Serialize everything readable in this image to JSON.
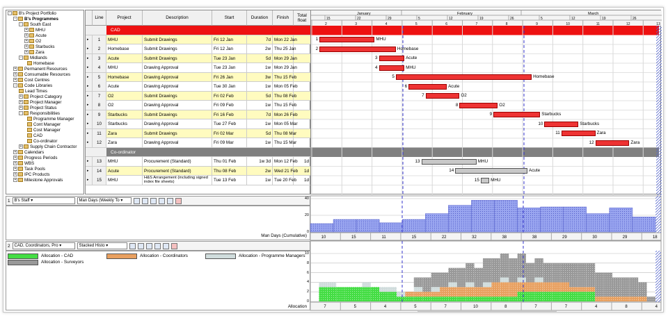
{
  "tree": [
    {
      "label": "B's Project Portfolio",
      "x": 2,
      "y": 1,
      "ex": "-"
    },
    {
      "label": "B's Programmes",
      "x": 10,
      "y": 9,
      "ex": "-",
      "bold": true
    },
    {
      "label": "South East",
      "x": 18,
      "y": 17,
      "ex": "-"
    },
    {
      "label": "MHU",
      "x": 26,
      "y": 25,
      "ex": "+"
    },
    {
      "label": "Acute",
      "x": 26,
      "y": 33,
      "ex": "+"
    },
    {
      "label": "O2",
      "x": 26,
      "y": 41,
      "ex": "+"
    },
    {
      "label": "Starbucks",
      "x": 26,
      "y": 49,
      "ex": "+"
    },
    {
      "label": "Zara",
      "x": 26,
      "y": 57,
      "ex": "+"
    },
    {
      "label": "Midlands",
      "x": 18,
      "y": 65,
      "ex": "-"
    },
    {
      "label": "Homebase",
      "x": 30,
      "y": 73,
      "ex": ""
    },
    {
      "label": "Permanent Resources",
      "x": 10,
      "y": 81,
      "ex": "+"
    },
    {
      "label": "Consumable Resources",
      "x": 10,
      "y": 89,
      "ex": "+"
    },
    {
      "label": "Cost Centres",
      "x": 10,
      "y": 97,
      "ex": "+"
    },
    {
      "label": "Code Libraries",
      "x": 10,
      "y": 105,
      "ex": "-"
    },
    {
      "label": "Lead Times",
      "x": 18,
      "y": 113,
      "ex": ""
    },
    {
      "label": "Project Category",
      "x": 18,
      "y": 121,
      "ex": "+"
    },
    {
      "label": "Project Manager",
      "x": 18,
      "y": 129,
      "ex": "+"
    },
    {
      "label": "Project Status",
      "x": 18,
      "y": 137,
      "ex": "+"
    },
    {
      "label": "Responsibilities",
      "x": 18,
      "y": 145,
      "ex": "-"
    },
    {
      "label": "Programme Manager",
      "x": 30,
      "y": 153,
      "ex": ""
    },
    {
      "label": "Cont Manager",
      "x": 30,
      "y": 161,
      "ex": ""
    },
    {
      "label": "Cost Manager",
      "x": 30,
      "y": 169,
      "ex": ""
    },
    {
      "label": "CAD",
      "x": 30,
      "y": 177,
      "ex": ""
    },
    {
      "label": "Co-ordinator",
      "x": 30,
      "y": 185,
      "ex": ""
    },
    {
      "label": "Supply Chain Contractor",
      "x": 18,
      "y": 193,
      "ex": "+"
    },
    {
      "label": "Calendars",
      "x": 10,
      "y": 201,
      "ex": "+"
    },
    {
      "label": "Progress Periods",
      "x": 10,
      "y": 209,
      "ex": "+"
    },
    {
      "label": "WBS",
      "x": 10,
      "y": 217,
      "ex": "+"
    },
    {
      "label": "Task Pools",
      "x": 10,
      "y": 225,
      "ex": "+"
    },
    {
      "label": "IPC Products",
      "x": 10,
      "y": 233,
      "ex": "+"
    },
    {
      "label": "Milestone Approvals",
      "x": 10,
      "y": 241,
      "ex": "+"
    }
  ],
  "grid_headers": [
    "Line",
    "Project",
    "Description",
    "Start",
    "Duration",
    "Finish",
    "Total float"
  ],
  "groups": {
    "cad": "CAD",
    "coord": "Co-ordinator"
  },
  "rows": [
    {
      "line": "1",
      "project": "MHU",
      "desc": "Submit Drawings",
      "start": "Fri 12 Jan",
      "dur": "7d",
      "finish": "Mon 22 Jan",
      "float": "",
      "y": true
    },
    {
      "line": "2",
      "project": "Homebase",
      "desc": "Submit Drawings",
      "start": "Fri 12 Jan",
      "dur": "2w",
      "finish": "Thu 25 Jan",
      "float": "",
      "y": false
    },
    {
      "line": "3",
      "project": "Acute",
      "desc": "Submit Drawings",
      "start": "Tue 23 Jan",
      "dur": "5d",
      "finish": "Mon 29 Jan",
      "float": "",
      "y": true
    },
    {
      "line": "4",
      "project": "MHU",
      "desc": "Drawing Approval",
      "start": "Tue 23 Jan",
      "dur": "1w",
      "finish": "Mon 29 Jan",
      "float": "",
      "y": false
    },
    {
      "line": "5",
      "project": "Homebase",
      "desc": "Drawing Approval",
      "start": "Fri 26 Jan",
      "dur": "3w",
      "finish": "Thu 15 Feb",
      "float": "",
      "y": true
    },
    {
      "line": "6",
      "project": "Acute",
      "desc": "Drawing Approval",
      "start": "Tue 30 Jan",
      "dur": "1w",
      "finish": "Mon 05 Feb",
      "float": "",
      "y": false
    },
    {
      "line": "7",
      "project": "O2",
      "desc": "Submit Drawings",
      "start": "Fri 02 Feb",
      "dur": "5d",
      "finish": "Thu 08 Feb",
      "float": "",
      "y": true
    },
    {
      "line": "8",
      "project": "O2",
      "desc": "Drawing Approval",
      "start": "Fri 09 Feb",
      "dur": "1w",
      "finish": "Thu 15 Feb",
      "float": "",
      "y": false
    },
    {
      "line": "9",
      "project": "Starbucks",
      "desc": "Submit Drawings",
      "start": "Fri 16 Feb",
      "dur": "7d",
      "finish": "Mon 26 Feb",
      "float": "",
      "y": true
    },
    {
      "line": "10",
      "project": "Starbucks",
      "desc": "Drawing Approval",
      "start": "Tue 27 Feb",
      "dur": "1w",
      "finish": "Mon 05 Mar",
      "float": "",
      "y": false
    },
    {
      "line": "11",
      "project": "Zara",
      "desc": "Submit Drawings",
      "start": "Fri 02 Mar",
      "dur": "5d",
      "finish": "Thu 08 Mar",
      "float": "",
      "y": true
    },
    {
      "line": "12",
      "project": "Zara",
      "desc": "Drawing Approval",
      "start": "Fri 09 Mar",
      "dur": "1w",
      "finish": "Thu 15 Mar",
      "float": "",
      "y": false
    },
    {
      "line": "13",
      "project": "MHU",
      "desc": "Procurement (Standard)",
      "start": "Thu 01 Feb",
      "dur": "1w 3d",
      "finish": "Mon 12 Feb",
      "float": "1d",
      "y": false
    },
    {
      "line": "14",
      "project": "Acute",
      "desc": "Procurement (Standard)",
      "start": "Thu 08 Feb",
      "dur": "2w",
      "finish": "Wed 21 Feb",
      "float": "1d",
      "y": true
    },
    {
      "line": "15",
      "project": "MHU",
      "desc": "H&S Arrangement (including signed index file sheets)",
      "start": "Tue 13 Feb",
      "dur": "1w",
      "finish": "Tue 20 Feb",
      "float": "1d",
      "y": false
    }
  ],
  "months": [
    "January",
    "February",
    "March"
  ],
  "week_ticks": [
    "15",
    "22",
    "29",
    "5",
    "12",
    "19",
    "26",
    "5",
    "12",
    "19",
    "26"
  ],
  "day_ticks": [
    "2",
    "3",
    "4",
    "5",
    "6",
    "7",
    "8",
    "9",
    "10",
    "11",
    "12",
    "13"
  ],
  "bars": [
    {
      "n": "1",
      "label": "MHU",
      "s": 0.5,
      "e": 7,
      "gray": false
    },
    {
      "n": "2",
      "label": "Homebase",
      "s": 0.5,
      "e": 9.5,
      "gray": false
    },
    {
      "n": "3",
      "label": "Acute",
      "s": 7.5,
      "e": 10.5,
      "gray": false
    },
    {
      "n": "4",
      "label": "MHU",
      "s": 7.5,
      "e": 10.5,
      "gray": false
    },
    {
      "n": "5",
      "label": "Homebase",
      "s": 9.5,
      "e": 25.5,
      "gray": false
    },
    {
      "n": "6",
      "label": "Acute",
      "s": 11,
      "e": 15.5,
      "gray": false
    },
    {
      "n": "7",
      "label": "O2",
      "s": 13,
      "e": 17,
      "gray": false
    },
    {
      "n": "8",
      "label": "O2",
      "s": 17,
      "e": 21.5,
      "gray": false
    },
    {
      "n": "9",
      "label": "Starbucks",
      "s": 21,
      "e": 26.5,
      "gray": false
    },
    {
      "n": "10",
      "label": "Starbucks",
      "s": 27,
      "e": 31,
      "gray": false
    },
    {
      "n": "11",
      "label": "Zara",
      "s": 29,
      "e": 33,
      "gray": false
    },
    {
      "n": "12",
      "label": "Zara",
      "s": 33,
      "e": 37,
      "gray": false
    },
    {
      "n": "13",
      "label": "MHU",
      "s": 12.5,
      "e": 19,
      "gray": true
    },
    {
      "n": "14",
      "label": "Acute",
      "s": 16.5,
      "e": 25,
      "gray": true
    },
    {
      "n": "15",
      "label": "MHU",
      "s": 19.5,
      "e": 20.5,
      "gray": true
    }
  ],
  "panel1": {
    "num": "1",
    "name": "B's Staff",
    "unit": "Man Days",
    "period": "(Weekly To"
  },
  "chart1": {
    "type": "bar",
    "ylabel": "",
    "ymax": 40,
    "yticks": [
      "40",
      "20",
      "0"
    ],
    "values": [
      10,
      15,
      15,
      11,
      15,
      22,
      32,
      38,
      38,
      29,
      30,
      30,
      22,
      29,
      18
    ],
    "axis_label": "Man Days (Cumulative)",
    "tick_labels": [
      "10",
      "15",
      "11",
      "15",
      "22",
      "32",
      "38",
      "38",
      "29",
      "30",
      "29",
      "18"
    ]
  },
  "panel2": {
    "num": "2",
    "name": "CAD, Coordinators, Pro",
    "chart": "Stacked Histo"
  },
  "legend": [
    {
      "label": "Allocation - CAD",
      "color": "#44dd44"
    },
    {
      "label": "Allocation - Coordinators",
      "color": "#e8a060"
    },
    {
      "label": "Allocation - Programme Managers",
      "color": "#d0dcdc"
    },
    {
      "label": "Allocation - Surveyors",
      "color": "#999999"
    }
  ],
  "chart2": {
    "type": "bar",
    "ymax": 10,
    "yticks": [
      "10",
      "8",
      "6",
      "4",
      "2",
      "0"
    ],
    "axis_label": "Allocation",
    "tick_labels": [
      "7",
      "5",
      "4",
      "5",
      "7",
      "10",
      "8",
      "7",
      "7",
      "4",
      "8",
      "4"
    ],
    "cad": [
      0,
      3,
      3,
      3,
      3,
      3,
      3,
      3,
      2,
      2,
      1,
      1,
      1,
      1,
      1,
      1,
      1,
      1,
      1,
      1,
      1,
      1,
      1,
      1,
      2,
      2,
      2,
      2,
      2,
      2,
      2,
      2,
      2,
      0,
      0,
      0,
      0,
      0,
      0,
      0
    ],
    "coord": [
      0,
      0,
      0,
      0,
      0,
      0,
      0,
      0,
      0,
      0,
      0,
      1,
      1,
      1,
      1,
      2,
      2,
      2,
      2,
      2,
      2,
      3,
      3,
      3,
      2,
      2,
      2,
      2,
      2,
      2,
      1,
      1,
      1,
      1,
      1,
      1,
      1,
      1,
      1,
      0
    ],
    "pm": [
      0,
      1,
      1,
      0,
      0,
      0,
      1,
      0,
      1,
      1,
      1,
      0,
      1,
      0,
      1,
      0,
      1,
      0,
      1,
      0,
      1,
      0,
      1,
      0,
      1,
      0,
      1,
      0,
      0,
      0,
      0,
      0,
      0,
      0,
      0,
      0,
      0,
      0,
      0,
      0
    ],
    "surv": [
      0,
      0,
      0,
      0,
      0,
      0,
      0,
      0,
      0,
      0,
      0,
      0,
      2,
      3,
      3,
      3,
      3,
      4,
      4,
      4,
      5,
      5,
      5,
      5,
      5,
      4,
      4,
      4,
      4,
      4,
      5,
      5,
      5,
      5,
      5,
      4,
      4,
      4,
      3,
      1
    ]
  }
}
